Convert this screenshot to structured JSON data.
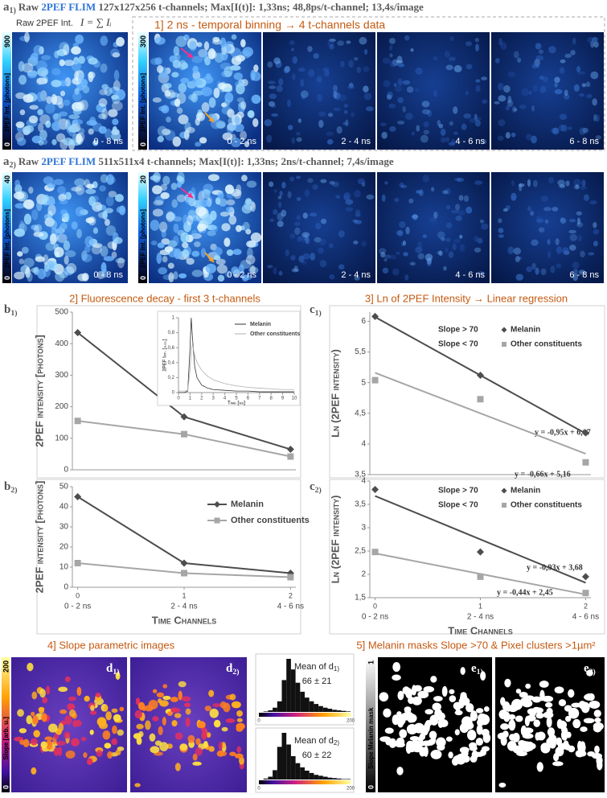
{
  "figure": {
    "a1": {
      "label": "a",
      "label_sub": "1)",
      "header": [
        "Raw ",
        "2PEF FLIM",
        " 127x127x256 t-channels; Max[I(t)]: 1,33ns; 48,8ps/t-channel; 13,4s/image"
      ],
      "raw_label": "Raw 2PEF Int.",
      "formula": "I = ∑ Iᵢ",
      "binning_title": "1] 2 ns - temporal binning → 4 t-channels data",
      "colorbars": [
        {
          "max": 900,
          "label": "2PEF Int. [photons]",
          "min": 0
        },
        {
          "max": 300,
          "label": "2PEF Int. [photons]",
          "min": 0
        }
      ],
      "images": [
        "0 - 8 ns",
        "0 - 2 ns",
        "2 - 4 ns",
        "4 - 6 ns",
        "6 - 8 ns"
      ]
    },
    "a2": {
      "label": "a",
      "label_sub": "2)",
      "header": [
        "Raw ",
        "2PEF FLIM",
        " 511x511x4 t-channels; Max[I(t)]: 1,33ns; 2ns/t-channel; 7,4s/image"
      ],
      "colorbars": [
        {
          "max": 40,
          "label": "2PEF Int. [photons]",
          "min": 0
        },
        {
          "max": 20,
          "label": "2PEF Int. [photons]",
          "min": 0
        }
      ],
      "images": [
        "0 - 8 ns",
        "0 - 2 ns",
        "2 - 4 ns",
        "4 - 6 ns",
        "6 - 8 ns"
      ]
    },
    "b_title": "2] Fluorescence decay  - first 3 t-channels",
    "c_title": "3] Ln of 2PEF Intensity → Linear regression",
    "d": {
      "title": "4] Slope parametric images",
      "colorbar": {
        "max": 200,
        "label": "Slope [arb. u.]",
        "min": 0
      },
      "images": [
        {
          "label": "d",
          "label_sub": "1)"
        },
        {
          "label": "d",
          "label_sub": "2)"
        }
      ]
    },
    "e": {
      "title": "5] Melanin masks Slope >70 & Pixel clusters >1µm²",
      "colorbar": {
        "max": 1,
        "label": "Slope  Melanin mask",
        "min": 0
      },
      "images": [
        {
          "label": "e",
          "label_sub": "1)"
        },
        {
          "label": "e",
          "label_sub": "2)"
        }
      ]
    }
  },
  "chart_data": [
    {
      "type": "line",
      "label": "b",
      "label_sub": "1)",
      "ylabel": "2PEF intensity [photons]",
      "x": [
        0,
        1,
        2
      ],
      "xlim": [
        -0.05,
        2.05
      ],
      "ylim": [
        0,
        500
      ],
      "yticks": [
        0,
        100,
        200,
        300,
        400,
        500
      ],
      "series": [
        {
          "name": "Melanin",
          "color": "#4d4d4d",
          "marker": "diamond",
          "values": [
            435,
            168,
            65
          ]
        },
        {
          "name": "Other constituents",
          "color": "#a6a6a6",
          "marker": "square",
          "values": [
            155,
            113,
            42
          ]
        }
      ]
    },
    {
      "type": "line",
      "ylabel": "2PEF Int. [a.u.]",
      "xlabel": "Time [ns]",
      "x": [
        0,
        0.5,
        0.8,
        1.0,
        1.1,
        1.2,
        1.4,
        1.6,
        2,
        2.5,
        3,
        4,
        5,
        6,
        7,
        8,
        9,
        10
      ],
      "xlim": [
        0,
        10
      ],
      "xticks": [
        0,
        1,
        2,
        3,
        4,
        5,
        6,
        7,
        8,
        9,
        10
      ],
      "ylim": [
        0,
        1
      ],
      "yticks": [
        0,
        {
          "value": 0.2,
          "label": "0,2"
        },
        {
          "value": 0.4,
          "label": "0,4"
        },
        {
          "value": 0.6,
          "label": "0,6"
        },
        {
          "value": 0.8,
          "label": "0,8"
        },
        1
      ],
      "legend": true,
      "series": [
        {
          "name": "Melanin",
          "color": "#333333",
          "values": [
            0,
            0,
            0.02,
            0.6,
            1.0,
            0.75,
            0.35,
            0.2,
            0.1,
            0.06,
            0.04,
            0.03,
            0.02,
            0.02,
            0.01,
            0.01,
            0.01,
            0.01
          ]
        },
        {
          "name": "Other constituents",
          "color": "#b0b0b0",
          "values": [
            0.02,
            0.02,
            0.03,
            0.3,
            0.55,
            0.65,
            0.5,
            0.4,
            0.3,
            0.22,
            0.17,
            0.12,
            0.09,
            0.07,
            0.06,
            0.05,
            0.04,
            0.04
          ]
        }
      ]
    },
    {
      "type": "line",
      "label": "b",
      "label_sub": "2)",
      "ylabel": "2PEF intensity [photons]",
      "xlabel": "Time Channels",
      "x": [
        0,
        1,
        2
      ],
      "xlim": [
        -0.05,
        2.05
      ],
      "xticks": [
        0,
        1,
        2
      ],
      "categories": [
        "0 - 2 ns",
        "2 - 4 ns",
        "4 - 6 ns"
      ],
      "ylim": [
        0,
        50
      ],
      "yticks": [
        0,
        10,
        20,
        30,
        40,
        50
      ],
      "legend": true,
      "series": [
        {
          "name": "Melanin",
          "color": "#4d4d4d",
          "marker": "diamond",
          "values": [
            45,
            12,
            7
          ]
        },
        {
          "name": "Other constituents",
          "color": "#a6a6a6",
          "marker": "square",
          "values": [
            12,
            7,
            5
          ]
        }
      ]
    },
    {
      "type": "scatter",
      "label": "c",
      "label_sub": "1)",
      "ylabel": "Ln (2PEF intensity)",
      "x": [
        0,
        1,
        2
      ],
      "xlim": [
        -0.05,
        2.05
      ],
      "ylim": [
        3.5,
        6.15
      ],
      "yticks": [
        {
          "value": 3.5,
          "label": "3,5"
        },
        4,
        {
          "value": 4.5,
          "label": "4,5"
        },
        5,
        {
          "value": 5.5,
          "label": "5,5"
        },
        6
      ],
      "legend": true,
      "legend_notes": [
        "Slope > 70",
        "Slope < 70"
      ],
      "series": [
        {
          "name": "Melanin",
          "color": "#4d4d4d",
          "marker": "diamond",
          "values": [
            6.08,
            5.12,
            4.18
          ]
        },
        {
          "name": "Other constituents",
          "color": "#a6a6a6",
          "marker": "square",
          "values": [
            5.04,
            4.73,
            3.7
          ]
        }
      ],
      "trendlines": [
        {
          "slope": -0.95,
          "intercept": 6.07,
          "label": "y = -0,95x + 6,07",
          "color": "#4d4d4d"
        },
        {
          "slope": -0.66,
          "intercept": 5.16,
          "label": "y = -0,66x + 5,16",
          "color": "#a6a6a6"
        }
      ]
    },
    {
      "type": "scatter",
      "label": "c",
      "label_sub": "2)",
      "ylabel": "Ln (2PEF intensity)",
      "xlabel": "Time Channels",
      "x": [
        0,
        1,
        2
      ],
      "xlim": [
        -0.05,
        2.05
      ],
      "xticks": [
        0,
        1,
        2
      ],
      "categories": [
        "0 - 2 ns",
        "2 - 4 ns",
        "4 - 6 ns"
      ],
      "ylim": [
        1.5,
        4
      ],
      "yticks": [
        {
          "value": 1.5,
          "label": "1,5"
        },
        2,
        {
          "value": 2.5,
          "label": "2,5"
        },
        3,
        {
          "value": 3.5,
          "label": "3,5"
        },
        4
      ],
      "legend": true,
      "legend_notes": [
        "Slope > 70",
        "Slope < 70"
      ],
      "series": [
        {
          "name": "Melanin",
          "color": "#4d4d4d",
          "marker": "diamond",
          "values": [
            3.82,
            2.48,
            1.95
          ]
        },
        {
          "name": "Other constituents",
          "color": "#a6a6a6",
          "marker": "square",
          "values": [
            2.48,
            1.95,
            1.6
          ]
        }
      ],
      "trendlines": [
        {
          "slope": -0.93,
          "intercept": 3.68,
          "label": "y = -0,93x + 3,68",
          "color": "#4d4d4d"
        },
        {
          "slope": -0.44,
          "intercept": 2.45,
          "label": "y = -0,44x + 2,45",
          "color": "#a6a6a6"
        }
      ]
    },
    {
      "type": "histogram",
      "note_label": "Mean of d",
      "note_sub": "1)",
      "note_value": "66 ± 21",
      "color": "#111111",
      "bins": [
        0,
        10,
        20,
        30,
        40,
        50,
        60,
        70,
        80,
        90,
        100,
        110,
        120,
        130,
        140,
        150,
        160,
        170,
        180,
        190,
        200
      ],
      "counts": [
        0,
        1,
        3,
        8,
        20,
        60,
        100,
        80,
        55,
        38,
        27,
        20,
        15,
        11,
        8,
        6,
        4,
        3,
        2,
        1
      ],
      "xlim": [
        0,
        200
      ],
      "xticks": [
        0,
        200
      ],
      "ylim": [
        0,
        100
      ]
    },
    {
      "type": "histogram",
      "note_label": "Mean of d",
      "note_sub": "2)",
      "note_value": "60 ± 22",
      "color": "#111111",
      "bins": [
        0,
        10,
        20,
        30,
        40,
        50,
        60,
        70,
        80,
        90,
        100,
        110,
        120,
        130,
        140,
        150,
        160,
        170,
        180,
        190,
        200
      ],
      "counts": [
        0,
        2,
        6,
        20,
        70,
        100,
        75,
        50,
        35,
        26,
        19,
        14,
        10,
        8,
        6,
        4,
        3,
        2,
        1,
        1
      ],
      "xlim": [
        0,
        200
      ],
      "xticks": [
        0,
        200
      ],
      "ylim": [
        0,
        100
      ]
    }
  ]
}
